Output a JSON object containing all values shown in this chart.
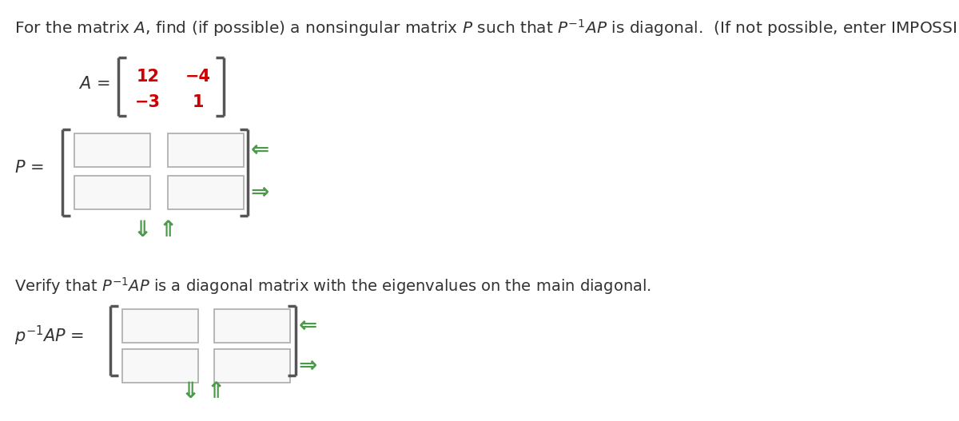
{
  "background_color": "#ffffff",
  "matrix_A_color": "#cc0000",
  "arrow_color": "#4a9a4a",
  "bracket_color": "#555555",
  "box_edge_color": "#aaaaaa",
  "box_face_color": "#f8f8f8",
  "text_color": "#333333",
  "font_size_title": 14.5,
  "font_size_label": 15,
  "font_size_matrix": 15,
  "matrix_A_values": [
    [
      "12",
      "−4"
    ],
    [
      "−3",
      "1"
    ]
  ],
  "title": "For the matrix $A$, find (if possible) a nonsingular matrix $P$ such that $P^{-1}AP$ is diagonal.  (If not possible, enter IMPOSSIBLE.)",
  "verify_text": "Verify that $P^{-1}AP$ is a diagonal matrix with the eigenvalues on the main diagonal."
}
